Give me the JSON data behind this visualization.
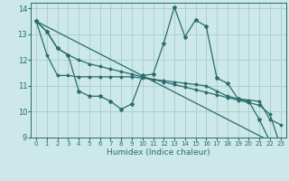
{
  "xlabel": "Humidex (Indice chaleur)",
  "bg_color": "#cce8e8",
  "grid_color": "#aacccc",
  "line_color": "#2a6b6b",
  "xlim": [
    -0.5,
    23.5
  ],
  "ylim": [
    9,
    14.2
  ],
  "yticks": [
    9,
    10,
    11,
    12,
    13,
    14
  ],
  "xticks": [
    0,
    1,
    2,
    3,
    4,
    5,
    6,
    7,
    8,
    9,
    10,
    11,
    12,
    13,
    14,
    15,
    16,
    17,
    18,
    19,
    20,
    21,
    22,
    23
  ],
  "series_jagged": [
    13.5,
    13.1,
    12.45,
    12.2,
    10.8,
    10.6,
    10.6,
    10.4,
    10.1,
    10.3,
    11.4,
    11.45,
    12.65,
    14.05,
    12.9,
    13.55,
    13.3,
    11.3,
    11.1,
    10.5,
    10.4,
    9.7,
    8.85,
    8.65
  ],
  "series_upper_straight": [
    13.5,
    13.1,
    12.45,
    12.2,
    12.0,
    11.85,
    11.75,
    11.65,
    11.55,
    11.45,
    11.35,
    11.25,
    11.15,
    11.05,
    10.95,
    10.85,
    10.75,
    10.65,
    10.55,
    10.45,
    10.35,
    10.25,
    9.9,
    8.65
  ],
  "series_lower_straight": [
    13.5,
    12.2,
    11.4,
    11.4,
    11.35,
    11.35,
    11.35,
    11.35,
    11.35,
    11.35,
    11.3,
    11.25,
    11.2,
    11.15,
    11.1,
    11.05,
    11.0,
    10.8,
    10.6,
    10.5,
    10.45,
    10.4,
    9.7,
    9.5
  ],
  "straight_line": [
    [
      0,
      23
    ],
    [
      13.5,
      8.65
    ]
  ]
}
